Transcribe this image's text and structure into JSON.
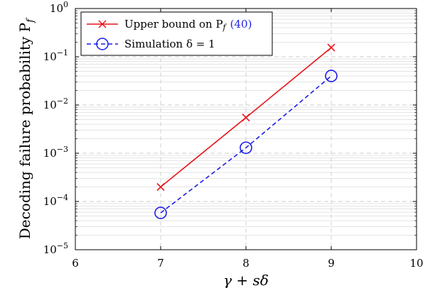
{
  "chart_data": {
    "type": "line",
    "xlabel": "γ + sδ",
    "ylabel": "Decoding failure probability  P",
    "ylabel_sub": "f",
    "xlim": [
      6,
      10
    ],
    "ylim": [
      1e-05,
      1
    ],
    "y_scale": "log",
    "grid": true,
    "legend_position": "top-left",
    "x_ticks": [
      "6",
      "7",
      "8",
      "9",
      "10"
    ],
    "y_ticks": [
      {
        "base": "10",
        "exp": "−5"
      },
      {
        "base": "10",
        "exp": "−4"
      },
      {
        "base": "10",
        "exp": "−3"
      },
      {
        "base": "10",
        "exp": "−2"
      },
      {
        "base": "10",
        "exp": "−1"
      },
      {
        "base": "10",
        "exp": "0"
      }
    ],
    "series": [
      {
        "name": "Upper bound on P",
        "name_sub": "f",
        "name_ref": "(40)",
        "color": "#e8141c",
        "marker": "x",
        "dash": "solid",
        "x": [
          7,
          8,
          9
        ],
        "y": [
          0.0002,
          0.0055,
          0.155
        ]
      },
      {
        "name": "Simulation δ = 1",
        "color": "#1c1ce8",
        "marker": "circle",
        "dash": "dashed",
        "x": [
          7,
          8,
          9
        ],
        "y": [
          5.8e-05,
          0.0013,
          0.04
        ]
      }
    ]
  }
}
